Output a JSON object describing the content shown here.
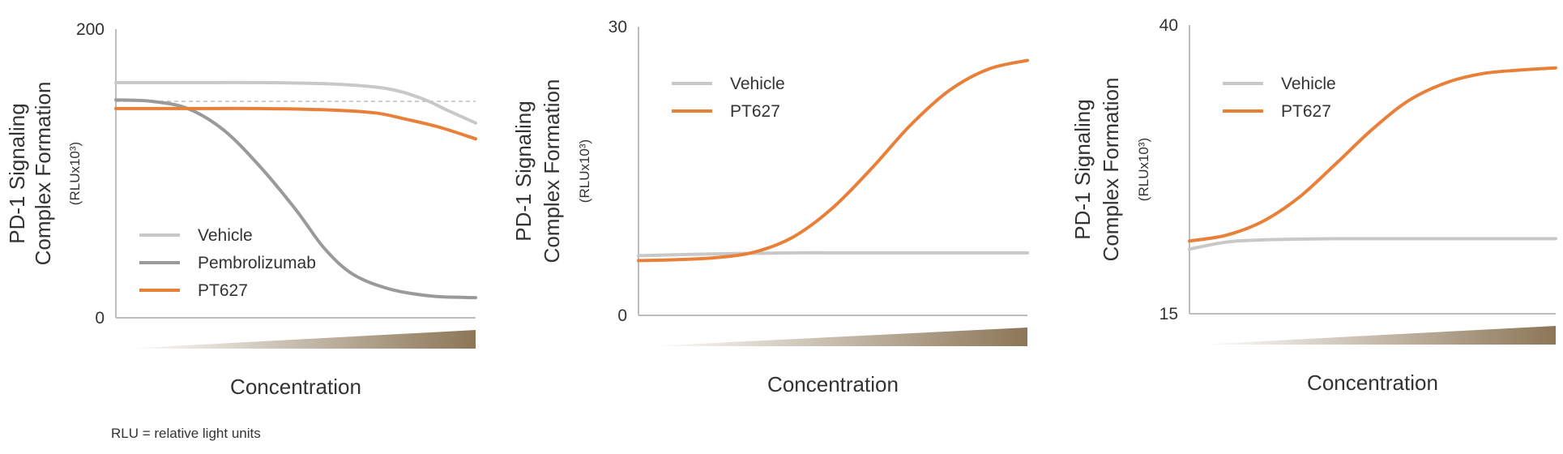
{
  "footnote": "RLU = relative light units",
  "colors": {
    "vehicle": "#c8c8c8",
    "pembrolizumab": "#9a9a9a",
    "pt627": "#e8803a",
    "axis": "#bdbdbd",
    "text": "#333333",
    "wedge_start": "#ffffff",
    "wedge_end": "#8c7656"
  },
  "chart_data": [
    {
      "type": "line",
      "ylabel_line1": "PD-1 Signaling",
      "ylabel_line2": "Complex Formation",
      "ylabel_unit": "(RLUx10³)",
      "xlabel": "Concentration",
      "ylim": [
        0,
        200
      ],
      "y_ticks": [
        "200",
        "0"
      ],
      "x_scale": "increasing concentration (unlabeled)",
      "reference_line_y": 150,
      "legend_position": "bottom-left",
      "series": [
        {
          "name": "Vehicle",
          "color_key": "vehicle",
          "x": [
            0,
            0.2,
            0.4,
            0.6,
            0.75,
            0.85,
            0.92,
            1.0
          ],
          "y": [
            163,
            163,
            163,
            162,
            159,
            152,
            144,
            135
          ]
        },
        {
          "name": "Pembrolizumab",
          "color_key": "pembrolizumab",
          "x": [
            0,
            0.1,
            0.2,
            0.3,
            0.4,
            0.5,
            0.58,
            0.66,
            0.76,
            0.88,
            1.0
          ],
          "y": [
            151,
            150,
            145,
            130,
            105,
            75,
            48,
            30,
            20,
            15,
            14
          ]
        },
        {
          "name": "PT627",
          "color_key": "pt627",
          "x": [
            0,
            0.2,
            0.4,
            0.6,
            0.72,
            0.8,
            0.9,
            1.0
          ],
          "y": [
            145,
            145,
            145,
            144,
            142,
            138,
            132,
            124
          ]
        }
      ]
    },
    {
      "type": "line",
      "ylabel_line1": "PD-1 Signaling",
      "ylabel_line2": "Complex Formation",
      "ylabel_unit": "(RLUx10³)",
      "xlabel": "Concentration",
      "ylim": [
        0,
        30
      ],
      "y_ticks": [
        "30",
        "0"
      ],
      "x_scale": "increasing concentration (unlabeled)",
      "legend_position": "top-left",
      "series": [
        {
          "name": "Vehicle",
          "color_key": "vehicle",
          "x": [
            0,
            0.2,
            0.4,
            0.6,
            0.8,
            1.0
          ],
          "y": [
            6.2,
            6.4,
            6.5,
            6.5,
            6.5,
            6.5
          ]
        },
        {
          "name": "PT627",
          "color_key": "pt627",
          "x": [
            0,
            0.1,
            0.2,
            0.3,
            0.4,
            0.5,
            0.6,
            0.7,
            0.8,
            0.9,
            1.0
          ],
          "y": [
            5.7,
            5.8,
            6.0,
            6.6,
            8.2,
            11.2,
            15.3,
            19.8,
            23.4,
            25.6,
            26.5
          ]
        }
      ]
    },
    {
      "type": "line",
      "ylabel_line1": "PD-1 Signaling",
      "ylabel_line2": "Complex Formation",
      "ylabel_unit": "(RLUx10³)",
      "xlabel": "Concentration",
      "ylim": [
        15,
        40
      ],
      "y_ticks": [
        "40",
        "15"
      ],
      "x_scale": "increasing concentration (unlabeled)",
      "legend_position": "top-left",
      "series": [
        {
          "name": "Vehicle",
          "color_key": "vehicle",
          "x": [
            0,
            0.1,
            0.2,
            0.4,
            0.6,
            0.8,
            1.0
          ],
          "y": [
            20.6,
            21.2,
            21.4,
            21.5,
            21.5,
            21.5,
            21.5
          ]
        },
        {
          "name": "PT627",
          "color_key": "pt627",
          "x": [
            0,
            0.1,
            0.2,
            0.3,
            0.4,
            0.5,
            0.6,
            0.7,
            0.8,
            0.9,
            1.0
          ],
          "y": [
            21.3,
            21.8,
            23.0,
            25.1,
            28.0,
            31.0,
            33.5,
            35.0,
            35.8,
            36.1,
            36.3
          ]
        }
      ]
    }
  ]
}
